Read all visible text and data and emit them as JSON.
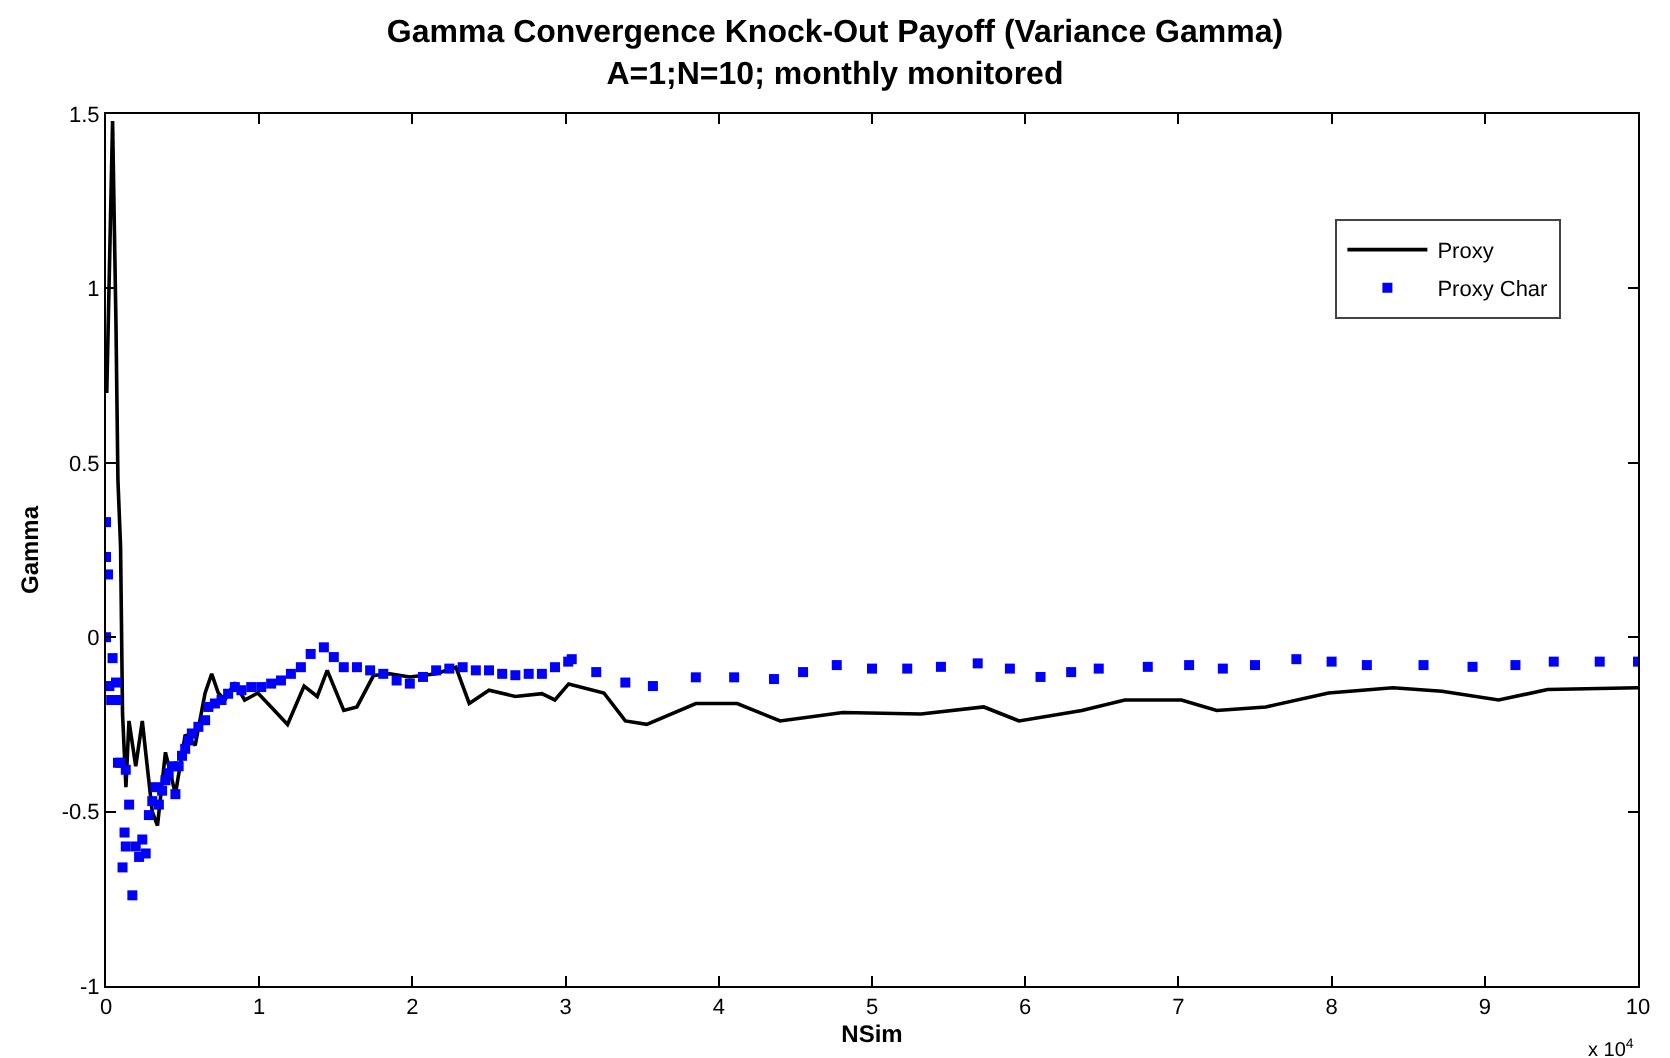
{
  "chart_data": {
    "type": "line",
    "title": "Gamma Convergence Knock-Out Payoff (Variance Gamma)",
    "subtitle": "A=1;N=10; monthly monitored",
    "xlabel": "NSim",
    "ylabel": "Gamma",
    "annotations": [
      "x 10$^{4}$"
    ],
    "xlim": [
      0,
      10
    ],
    "ylim": [
      -1,
      1.5
    ],
    "xticks": [
      0,
      1,
      2,
      3,
      4,
      5,
      6,
      7,
      8,
      9,
      10
    ],
    "yticks": [
      -1,
      -0.5,
      0,
      0.5,
      1,
      1.5
    ],
    "grid": false,
    "legend": "top right",
    "series": [
      {
        "name": "Proxy",
        "marker": "none",
        "color": "#000000",
        "x": [
          0.005,
          0.043,
          0.065,
          0.078,
          0.095,
          0.108,
          0.13,
          0.15,
          0.194,
          0.237,
          0.259,
          0.302,
          0.336,
          0.388,
          0.453,
          0.517,
          0.582,
          0.647,
          0.69,
          0.733,
          0.776,
          0.84,
          0.905,
          0.991,
          1.078,
          1.185,
          1.293,
          1.379,
          1.444,
          1.552,
          1.638,
          1.746,
          1.853,
          1.983,
          2.155,
          2.284,
          2.371,
          2.5,
          2.672,
          2.845,
          2.93,
          3.02,
          3.25,
          3.39,
          3.53,
          3.85,
          4.12,
          4.4,
          4.81,
          5.32,
          5.73,
          5.96,
          6.37,
          6.65,
          7.02,
          7.25,
          7.57,
          7.98,
          8.4,
          8.72,
          9.09,
          9.41,
          10.0
        ],
        "values": [
          0.7,
          1.48,
          0.9,
          0.45,
          0.26,
          -0.22,
          -0.43,
          -0.24,
          -0.37,
          -0.24,
          -0.33,
          -0.5,
          -0.54,
          -0.33,
          -0.45,
          -0.28,
          -0.31,
          -0.16,
          -0.105,
          -0.16,
          -0.18,
          -0.13,
          -0.18,
          -0.16,
          -0.2,
          -0.25,
          -0.14,
          -0.17,
          -0.095,
          -0.21,
          -0.2,
          -0.11,
          -0.105,
          -0.114,
          -0.105,
          -0.086,
          -0.19,
          -0.152,
          -0.17,
          -0.162,
          -0.18,
          -0.134,
          -0.16,
          -0.24,
          -0.25,
          -0.19,
          -0.19,
          -0.24,
          -0.216,
          -0.22,
          -0.2,
          -0.24,
          -0.21,
          -0.18,
          -0.18,
          -0.21,
          -0.2,
          -0.16,
          -0.145,
          -0.155,
          -0.18,
          -0.15,
          -0.145
        ]
      },
      {
        "name": "Proxy Char",
        "type": "scatter",
        "marker": "square",
        "color": "#0000ff",
        "x": [
          0,
          0,
          0.013,
          0,
          0.043,
          0.022,
          0.065,
          0.034,
          0.065,
          0.078,
          0.095,
          0.129,
          0.151,
          0.121,
          0.129,
          0.108,
          0.172,
          0.194,
          0.216,
          0.237,
          0.259,
          0.302,
          0.28,
          0.323,
          0.345,
          0.366,
          0.388,
          0.409,
          0.431,
          0.453,
          0.474,
          0.496,
          0.517,
          0.539,
          0.56,
          0.603,
          0.647,
          0.668,
          0.711,
          0.754,
          0.797,
          0.841,
          0.884,
          0.948,
          1.013,
          1.078,
          1.142,
          1.207,
          1.272,
          1.336,
          1.422,
          1.487,
          1.552,
          1.638,
          1.724,
          1.81,
          1.897,
          1.983,
          2.069,
          2.155,
          2.241,
          2.328,
          2.414,
          2.5,
          2.586,
          2.672,
          2.759,
          2.845,
          2.931,
          3.017,
          3.04,
          3.2,
          3.39,
          3.57,
          3.85,
          4.1,
          4.36,
          4.55,
          4.77,
          5.0,
          5.23,
          5.45,
          5.69,
          5.9,
          6.1,
          6.3,
          6.48,
          6.8,
          7.07,
          7.29,
          7.5,
          7.77,
          8.0,
          8.23,
          8.6,
          8.92,
          9.2,
          9.45,
          9.75,
          10.0
        ],
        "values": [
          0.33,
          0.23,
          0.18,
          0,
          -0.06,
          -0.14,
          -0.13,
          -0.18,
          -0.18,
          -0.36,
          -0.36,
          -0.38,
          -0.48,
          -0.56,
          -0.6,
          -0.66,
          -0.74,
          -0.6,
          -0.63,
          -0.58,
          -0.62,
          -0.47,
          -0.51,
          -0.43,
          -0.48,
          -0.44,
          -0.41,
          -0.39,
          -0.37,
          -0.45,
          -0.37,
          -0.34,
          -0.32,
          -0.296,
          -0.276,
          -0.257,
          -0.238,
          -0.2,
          -0.19,
          -0.18,
          -0.162,
          -0.143,
          -0.152,
          -0.143,
          -0.143,
          -0.133,
          -0.124,
          -0.105,
          -0.086,
          -0.048,
          -0.029,
          -0.057,
          -0.086,
          -0.086,
          -0.095,
          -0.105,
          -0.124,
          -0.133,
          -0.114,
          -0.095,
          -0.09,
          -0.086,
          -0.095,
          -0.095,
          -0.105,
          -0.109,
          -0.105,
          -0.105,
          -0.086,
          -0.07,
          -0.063,
          -0.1,
          -0.13,
          -0.14,
          -0.115,
          -0.115,
          -0.12,
          -0.1,
          -0.08,
          -0.09,
          -0.09,
          -0.085,
          -0.075,
          -0.09,
          -0.114,
          -0.1,
          -0.09,
          -0.085,
          -0.08,
          -0.09,
          -0.08,
          -0.063,
          -0.07,
          -0.08,
          -0.08,
          -0.085,
          -0.08,
          -0.07,
          -0.07,
          -0.07
        ]
      }
    ]
  }
}
